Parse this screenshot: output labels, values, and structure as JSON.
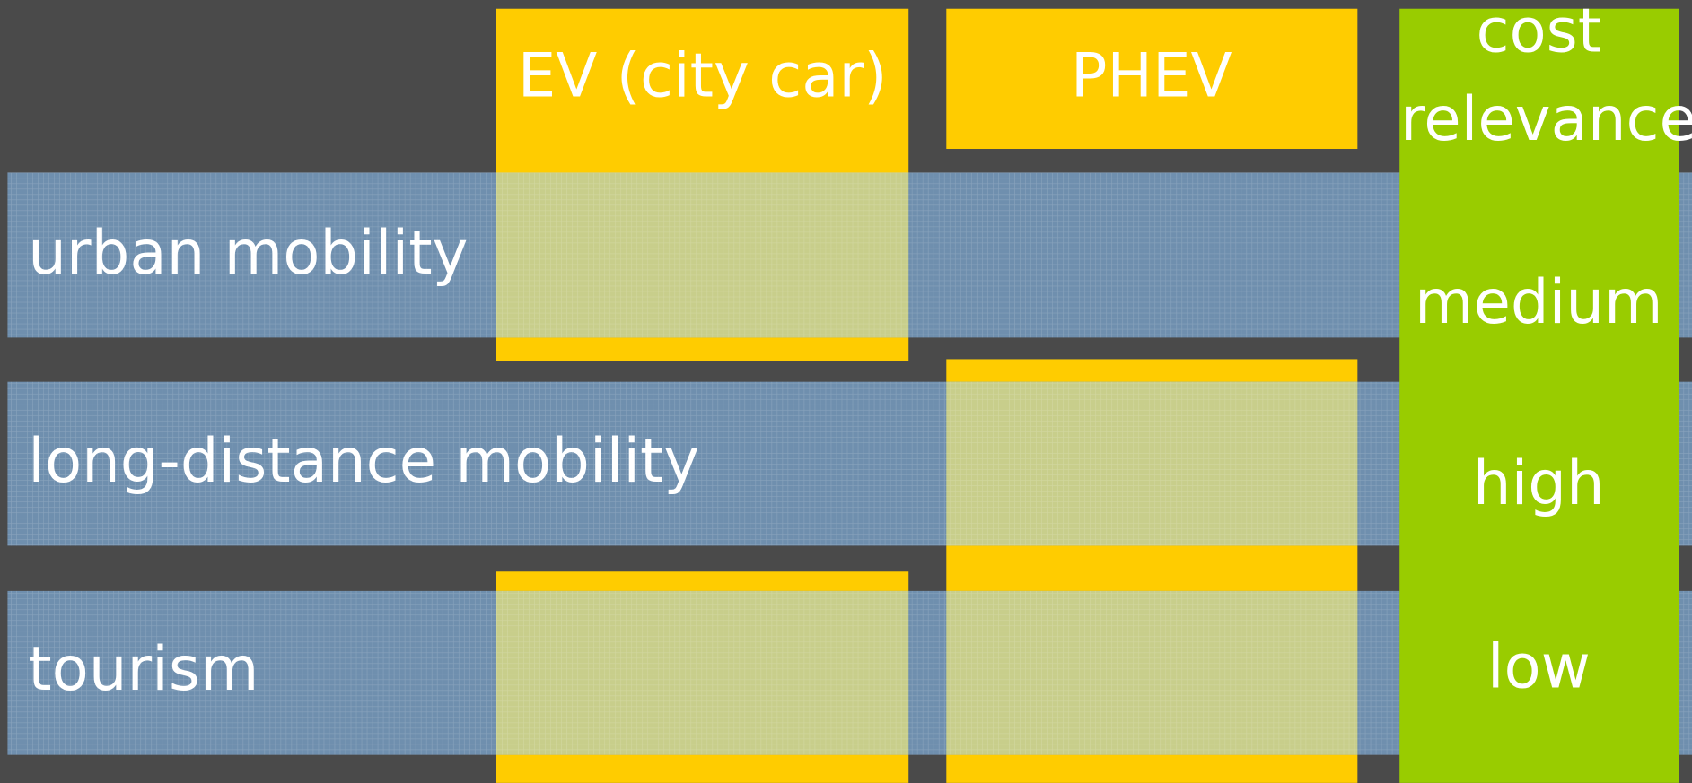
{
  "columns": {
    "ev": "EV (city car)",
    "phev": "PHEV",
    "cost": "cost relevance"
  },
  "rows": [
    {
      "label": "urban mobility",
      "cost": "medium"
    },
    {
      "label": "long-distance mobility",
      "cost": "high"
    },
    {
      "label": "tourism",
      "cost": "low"
    }
  ]
}
